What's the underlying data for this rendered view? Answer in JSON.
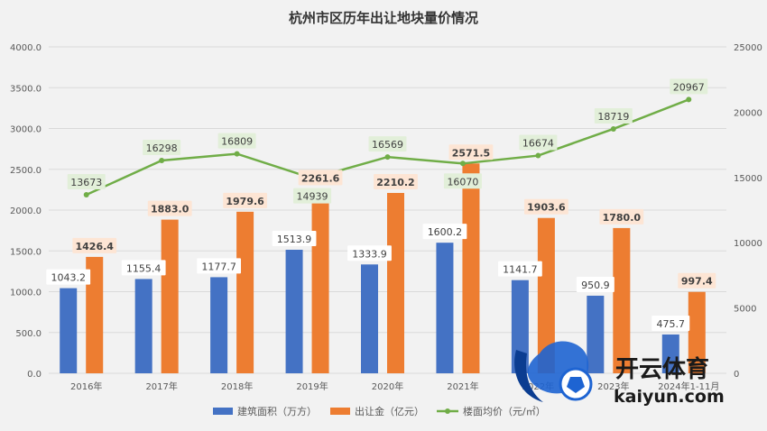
{
  "chart_data": {
    "type": "bar",
    "title": "杭州市区历年出让地块量价情况",
    "categories": [
      "2016年",
      "2017年",
      "2018年",
      "2019年",
      "2020年",
      "2021年",
      "2022年",
      "2023年",
      "2024年1-11月"
    ],
    "series": [
      {
        "name": "建筑面积（万方）",
        "type": "bar",
        "axis": "left",
        "color": "#4472c4",
        "values": [
          1043.2,
          1155.4,
          1177.7,
          1513.9,
          1333.9,
          1600.2,
          1141.7,
          950.9,
          475.7
        ],
        "labels": [
          "1043.2",
          "1155.4",
          "1177.7",
          "1513.9",
          "1333.9",
          "1600.2",
          "1141.7",
          "950.9",
          "475.7"
        ]
      },
      {
        "name": "出让金（亿元）",
        "type": "bar",
        "axis": "left",
        "color": "#ed7d31",
        "values": [
          1426.4,
          1883.0,
          1979.6,
          2261.6,
          2210.2,
          2571.5,
          1903.6,
          1780.0,
          997.4
        ],
        "labels": [
          "1426.4",
          "1883.0",
          "1979.6",
          "2261.6",
          "2210.2",
          "2571.5",
          "1903.6",
          "1780.0",
          "997.4"
        ]
      },
      {
        "name": "楼面均价（元/㎡）",
        "type": "line",
        "axis": "right",
        "color": "#70ad47",
        "values": [
          13673,
          16298,
          16809,
          14939,
          16569,
          16070,
          16674,
          18719,
          20967
        ],
        "labels": [
          "13673",
          "16298",
          "16809",
          "14939",
          "16569",
          "16070",
          "16674",
          "18719",
          "20967"
        ]
      }
    ],
    "ylim_left": [
      0,
      4000
    ],
    "yticks_left": [
      "0.0",
      "500.0",
      "1000.0",
      "1500.0",
      "2000.0",
      "2500.0",
      "3000.0",
      "3500.0",
      "4000.0"
    ],
    "ylim_right": [
      0,
      25000
    ],
    "yticks_right": [
      "0",
      "5000",
      "10000",
      "15000",
      "20000",
      "25000"
    ],
    "grid": true,
    "legend_position": "bottom"
  },
  "watermark": {
    "name": "开云体育",
    "domain": "kaiyun.com"
  },
  "colors": {
    "area_bar": "#4472c4",
    "money_bar": "#ed7d31",
    "price_line": "#70ad47",
    "background": "#f2f2f2"
  }
}
